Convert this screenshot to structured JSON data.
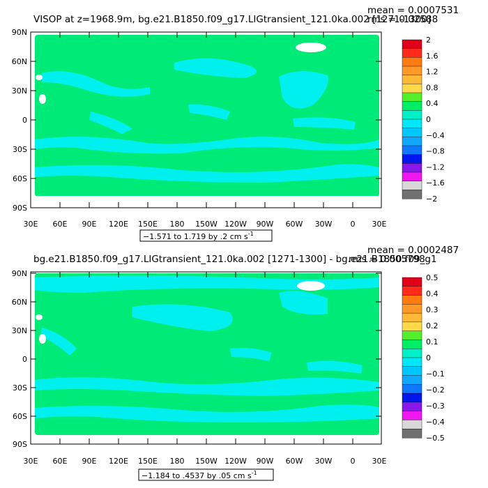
{
  "chart_data": [
    {
      "type": "heatmap",
      "title": "VISOP at z=1968.9m, bg.e21.B1850.f09_g17.LIGtransient_121.0ka.002 [1271-1300]",
      "stats": {
        "mean": "mean = 0.0007531",
        "rms": "rms = 0.02588"
      },
      "contour_info": "−1.571 to 1.719 by .2 cm s",
      "units_superscript": "-1",
      "y_ticks": [
        "90N",
        "60N",
        "30N",
        "0",
        "30S",
        "60S",
        "90S"
      ],
      "x_ticks": [
        "30E",
        "60E",
        "90E",
        "120E",
        "150E",
        "180",
        "150W",
        "120W",
        "90W",
        "60W",
        "30W",
        "0",
        "30E"
      ],
      "colorbar": {
        "labels": [
          "2",
          "1.6",
          "1.2",
          "0.8",
          "0.4",
          "0",
          "−0.4",
          "−0.8",
          "−1.2",
          "−1.6",
          "−2"
        ],
        "colors": [
          "#e0001a",
          "#ff2a1a",
          "#ff7a10",
          "#ff9a28",
          "#ffb838",
          "#ffd94a",
          "#55ee2c",
          "#00ee66",
          "#00f0c8",
          "#00e8f8",
          "#00c8ff",
          "#10a8ff",
          "#1078ff",
          "#0018ee",
          "#8a18e8",
          "#f018f0",
          "#d8d8d8",
          "#707070"
        ]
      },
      "dominant_color": "#00ea78",
      "secondary_color": "#00f0f0"
    },
    {
      "type": "heatmap",
      "title": "bg.e21.B1850.f09_g17.LIGtransient_121.0ka.002 [1271-1300] - bg.e21.B1850.f09_g1",
      "stats": {
        "mean": "mean = 0.0002487",
        "rms": "rms = 0.005798"
      },
      "contour_info": "−1.184 to .4537 by .05 cm s",
      "units_superscript": "-1",
      "y_ticks": [
        "90N",
        "60N",
        "30N",
        "0",
        "30S",
        "60S",
        "90S"
      ],
      "x_ticks": [
        "30E",
        "60E",
        "90E",
        "120E",
        "150E",
        "180",
        "150W",
        "120W",
        "90W",
        "60W",
        "30W",
        "0",
        "30E"
      ],
      "colorbar": {
        "labels": [
          "0.5",
          "0.4",
          "0.3",
          "0.2",
          "0.1",
          "0",
          "−0.1",
          "−0.2",
          "−0.3",
          "−0.4",
          "−0.5"
        ],
        "colors": [
          "#e0001a",
          "#ff2a1a",
          "#ff7a10",
          "#ff9a28",
          "#ffb838",
          "#ffd94a",
          "#55ee2c",
          "#00ee66",
          "#00f0c8",
          "#00e8f8",
          "#00c8ff",
          "#10a8ff",
          "#1078ff",
          "#0018ee",
          "#8a18e8",
          "#f018f0",
          "#d8d8d8",
          "#707070"
        ]
      },
      "dominant_color": "#00ea78",
      "secondary_color": "#00f0f0"
    }
  ]
}
